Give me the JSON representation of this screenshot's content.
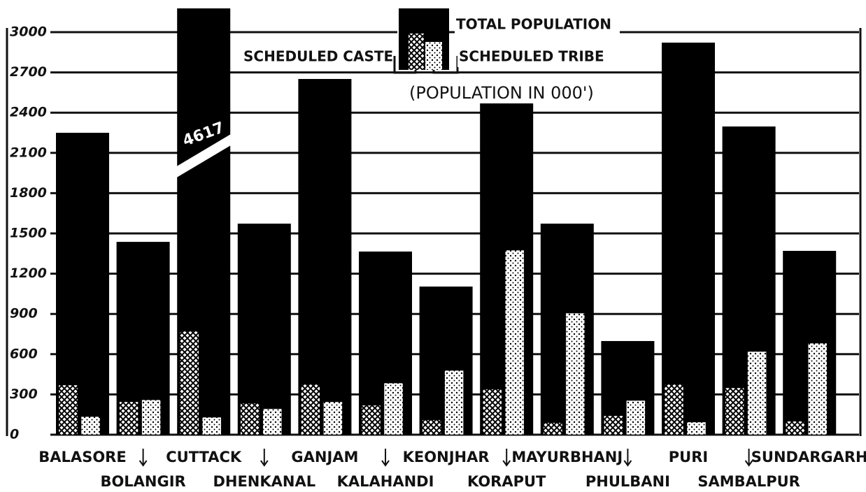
{
  "chart_data": {
    "type": "bar",
    "subtitle": "(POPULATION IN 000')",
    "categories": [
      "BALASORE",
      "BOLANGIR",
      "CUTTACK",
      "DHENKANAL",
      "GANJAM",
      "KALAHANDI",
      "KEONJHAR",
      "KORAPUT",
      "MAYURBHANJ",
      "PHULBANI",
      "PURI",
      "SAMBALPUR",
      "SUNDARGARH"
    ],
    "series": [
      {
        "name": "TOTAL POPULATION",
        "color": "#000000",
        "pattern": "solid",
        "values": [
          2250,
          1437,
          4617,
          1573,
          2651,
          1365,
          1104,
          2469,
          1573,
          698,
          2922,
          2297,
          1370
        ],
        "value_labels": [
          null,
          null,
          "4617",
          null,
          null,
          null,
          null,
          null,
          null,
          null,
          null,
          null,
          null
        ]
      },
      {
        "name": "SCHEDULED CASTE",
        "color": "#000000",
        "pattern": "crosshatch",
        "values": [
          370,
          245,
          771,
          234,
          375,
          219,
          110,
          339,
          90,
          141,
          375,
          349,
          100
        ]
      },
      {
        "name": "SCHEDULED TRIBE",
        "color": "#000000",
        "pattern": "dots",
        "values": [
          135,
          260,
          130,
          193,
          245,
          385,
          479,
          1375,
          906,
          255,
          94,
          620,
          682
        ]
      }
    ],
    "ylim": [
      0,
      3000
    ],
    "yticks": [
      0,
      300,
      600,
      900,
      1200,
      1500,
      1800,
      2100,
      2400,
      2700,
      3000
    ],
    "grid": true
  }
}
